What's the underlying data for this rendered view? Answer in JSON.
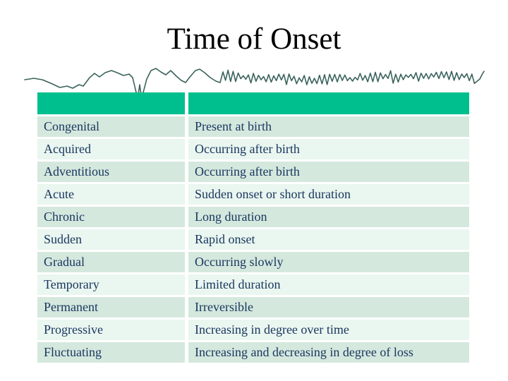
{
  "slide": {
    "title": "Time of Onset"
  },
  "decorations": {
    "squiggle_icon": "waveform-squiggle-divider"
  },
  "table": {
    "header": {
      "term_label": "",
      "definition_label": ""
    },
    "rows": [
      {
        "term": "Congenital",
        "definition": "Present at birth"
      },
      {
        "term": "Acquired",
        "definition": "Occurring after birth"
      },
      {
        "term": "Adventitious",
        "definition": "Occurring after birth"
      },
      {
        "term": "Acute",
        "definition": "Sudden onset or short duration"
      },
      {
        "term": "Chronic",
        "definition": "Long duration"
      },
      {
        "term": "Sudden",
        "definition": "Rapid onset"
      },
      {
        "term": "Gradual",
        "definition": "Occurring slowly"
      },
      {
        "term": "Temporary",
        "definition": "Limited duration"
      },
      {
        "term": "Permanent",
        "definition": "Irreversible"
      },
      {
        "term": "Progressive",
        "definition": "Increasing in degree over time"
      },
      {
        "term": "Fluctuating",
        "definition": "Increasing and decreasing in degree of loss"
      }
    ]
  },
  "colors": {
    "title": "#000000",
    "header_bg": "#00BF8E",
    "row_dark": "#D5E8DE",
    "row_light": "#EAF6F0",
    "text": "#17365D",
    "squiggle": "#3A635C"
  }
}
